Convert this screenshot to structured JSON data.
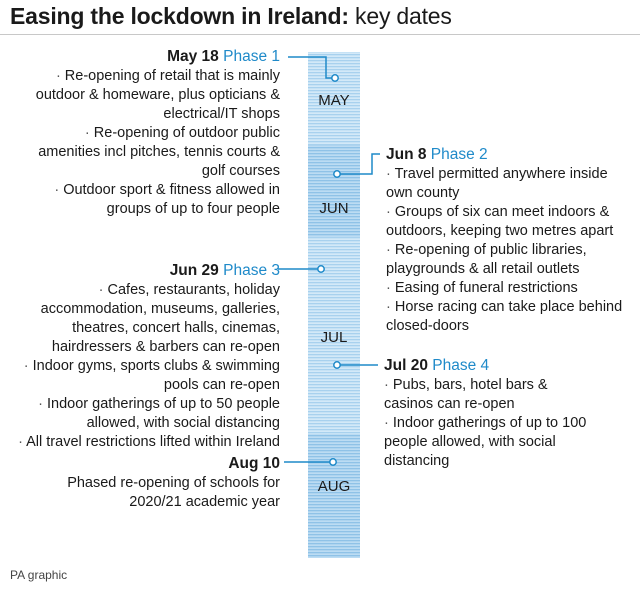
{
  "title": {
    "bold": "Easing the lockdown in Ireland:",
    "rest": " key dates"
  },
  "months": [
    "MAY",
    "JUN",
    "JUL",
    "AUG"
  ],
  "phases": [
    {
      "date": "May 18",
      "phase": "Phase 1",
      "items": [
        "Re-opening of retail that is mainly outdoor & homeware, plus opticians & electrical/IT shops",
        "Re-opening of outdoor public amenities incl pitches, tennis courts & golf courses",
        "Outdoor sport & fitness allowed in groups of up to four people"
      ]
    },
    {
      "date": "Jun 8",
      "phase": "Phase 2",
      "items": [
        "Travel permitted anywhere inside own county",
        "Groups of six can meet indoors & outdoors, keeping two metres apart",
        "Re-opening of public libraries, playgrounds & all retail outlets",
        "Easing of funeral restrictions",
        "Horse racing can take place behind closed-doors"
      ]
    },
    {
      "date": "Jun 29",
      "phase": "Phase 3",
      "items": [
        "Cafes, restaurants, holiday accommodation, museums, galleries, theatres, concert halls, cinemas, hairdressers & barbers can re-open",
        "Indoor gyms, sports clubs & swimming pools can re-open",
        "Indoor gatherings of up to 50 people allowed, with social distancing",
        "All travel restrictions lifted within Ireland"
      ]
    },
    {
      "date": "Jul 20",
      "phase": "Phase 4",
      "items": [
        "Pubs, bars, hotel bars & casinos can re-open",
        "Indoor gatherings of up to 100 people allowed, with social distancing"
      ]
    },
    {
      "date": "Aug 10",
      "phase": "",
      "items": [
        "Phased re-opening of schools for 2020/21 academic year"
      ]
    }
  ],
  "source": "PA graphic",
  "colors": {
    "accent": "#1f8ac9",
    "bar_light": "#cfe6f6",
    "bar_stripe": "#a9d2ee",
    "bar_dark_stripe": "#8fc3e8"
  }
}
